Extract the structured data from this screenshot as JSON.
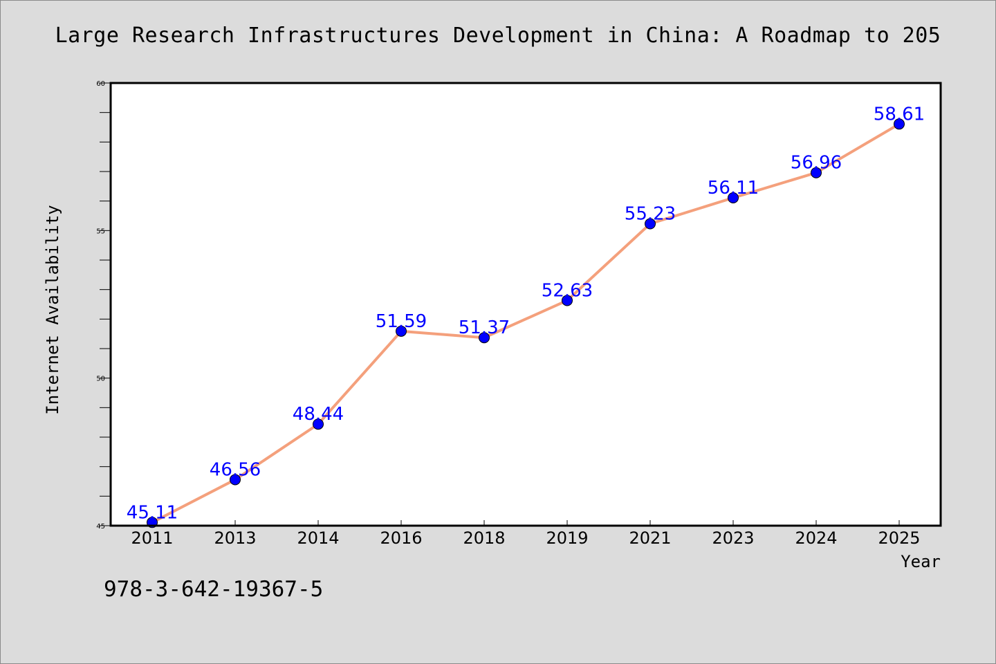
{
  "title": "Large Research Infrastructures Development in China: A Roadmap to 205",
  "footer_text": "978-3-642-19367-5",
  "colors": {
    "background": "#dcdcdc",
    "plot_background": "#ffffff",
    "line": "#f4a07c",
    "marker": "#0000ff",
    "data_label": "#0000ff"
  },
  "chart_data": {
    "type": "line",
    "title": "Large Research Infrastructures Development in China: A Roadmap to 205",
    "xlabel": "Year",
    "ylabel": "Internet Availability",
    "categories": [
      "2011",
      "2013",
      "2014",
      "2016",
      "2018",
      "2019",
      "2021",
      "2023",
      "2024",
      "2025"
    ],
    "series": [
      {
        "values": [
          45.11,
          46.56,
          48.44,
          51.59,
          51.37,
          52.63,
          55.23,
          56.11,
          56.96,
          58.61
        ]
      }
    ],
    "data_labels": [
      "45.11",
      "46.56",
      "48.44",
      "51.59",
      "51.37",
      "52.63",
      "55.23",
      "56.11",
      "56.96",
      "58.61"
    ],
    "ylim": [
      45,
      60
    ],
    "yticks": [
      "45",
      "50",
      "55",
      "60"
    ],
    "grid": false,
    "legend": "none"
  }
}
